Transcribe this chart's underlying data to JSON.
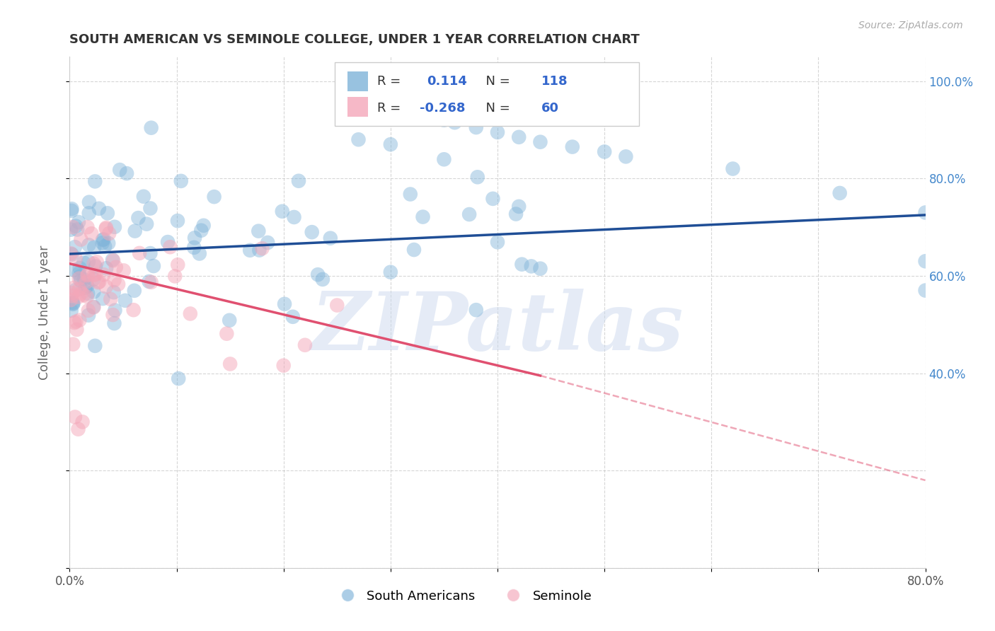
{
  "title": "SOUTH AMERICAN VS SEMINOLE COLLEGE, UNDER 1 YEAR CORRELATION CHART",
  "source": "Source: ZipAtlas.com",
  "ylabel": "College, Under 1 year",
  "xlim": [
    0.0,
    0.8
  ],
  "ylim": [
    0.0,
    1.05
  ],
  "blue_color": "#7fb3d9",
  "pink_color": "#f4a7b9",
  "blue_line_color": "#1f4e96",
  "pink_line_color": "#e05070",
  "R_blue": 0.114,
  "N_blue": 118,
  "R_pink": -0.268,
  "N_pink": 60,
  "legend_color": "#3366cc",
  "watermark": "ZIPatlas",
  "watermark_color": "#ddeeff",
  "background_color": "#ffffff",
  "grid_color": "#cccccc",
  "title_color": "#333333",
  "blue_trend": [
    0.0,
    0.8,
    0.645,
    0.725
  ],
  "pink_trend_solid": [
    0.0,
    0.44,
    0.625,
    0.395
  ],
  "pink_trend_dash": [
    0.44,
    0.8,
    0.395,
    0.18
  ]
}
